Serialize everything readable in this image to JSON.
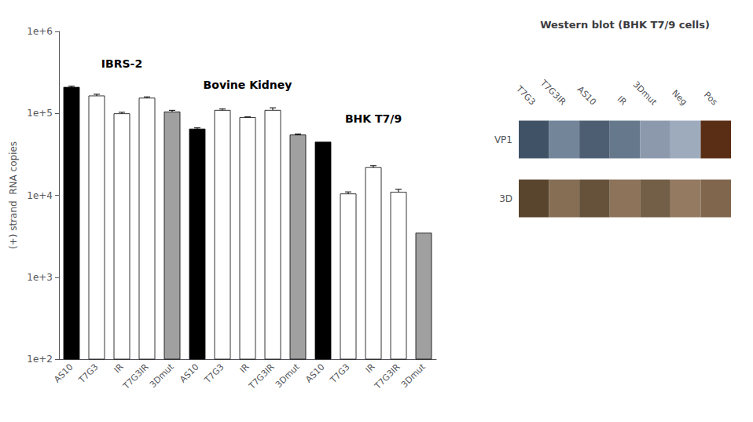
{
  "chart_data": [
    {
      "type": "bar",
      "ylabel": "(+) strand  RNA copies",
      "categories": [
        "AS10",
        "T7G3",
        "IR",
        "T7G3IR",
        "3Dmut",
        "AS10",
        "T7G3",
        "IR",
        "T7G3IR",
        "3Dmut",
        "AS10",
        "T7G3",
        "IR",
        "T7G3IR",
        "3Dmut"
      ],
      "values": [
        210000,
        165000,
        100000,
        155000,
        105000,
        65000,
        110000,
        90000,
        110000,
        55000,
        45000,
        10500,
        22000,
        11000,
        3500
      ],
      "errors": [
        5000,
        6000,
        3000,
        4000,
        4000,
        1500,
        3000,
        200,
        7000,
        1000,
        0,
        500,
        1000,
        800,
        0
      ],
      "colors": [
        "#000000",
        "#ffffff",
        "#ffffff",
        "#ffffff",
        "#a0a0a0",
        "#000000",
        "#ffffff",
        "#ffffff",
        "#ffffff",
        "#a0a0a0",
        "#000000",
        "#ffffff",
        "#ffffff",
        "#ffffff",
        "#a0a0a0"
      ],
      "annotations": [
        "IBRS-2",
        "Bovine Kidney",
        "BHK T7/9"
      ],
      "log": "y",
      "ylim": [
        100,
        1000000
      ],
      "yticks": [
        {
          "value": 100,
          "label": "1e+2"
        },
        {
          "value": 1000,
          "label": "1e+3"
        },
        {
          "value": 10000,
          "label": "1e+4"
        },
        {
          "value": 100000,
          "label": "1e+5"
        },
        {
          "value": 1000000,
          "label": "1e+6"
        }
      ],
      "grid": false
    },
    {
      "type": "blot",
      "title": "Western blot (BHK T7/9 cells)",
      "categories": [
        "T7G3",
        "T7G3IR",
        "AS10",
        "IR",
        "3Dmut",
        "Neg",
        "Pos"
      ],
      "series": [
        {
          "name": "VP1",
          "colors": [
            "#405266",
            "#738599",
            "#4d5e73",
            "#66788c",
            "#8c99ad",
            "#9eabbd",
            "#592e14"
          ]
        },
        {
          "name": "3D",
          "colors": [
            "#59452e",
            "#856e54",
            "#66523b",
            "#8c7359",
            "#735e47",
            "#947a61",
            "#80664d"
          ]
        }
      ]
    }
  ]
}
